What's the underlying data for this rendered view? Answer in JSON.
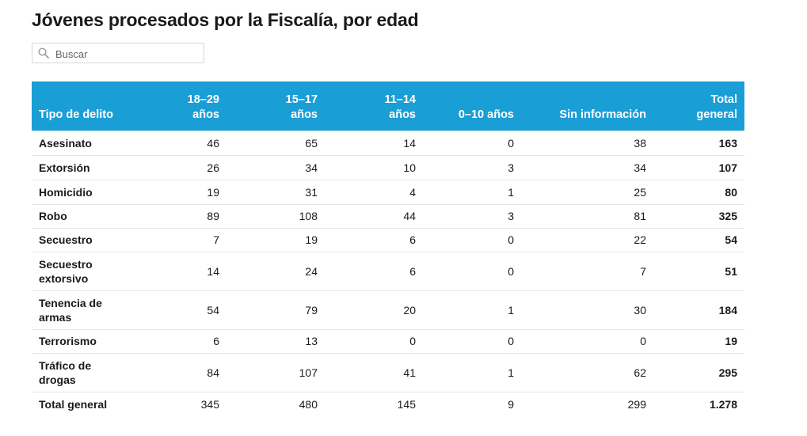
{
  "title": "Jóvenes procesados por la Fiscalía, por edad",
  "search": {
    "placeholder": "Buscar"
  },
  "table": {
    "headers": [
      {
        "line1": "",
        "line2": "Tipo de delito"
      },
      {
        "line1": "18–29",
        "line2": "años"
      },
      {
        "line1": "15–17",
        "line2": "años"
      },
      {
        "line1": "11–14",
        "line2": "años"
      },
      {
        "line1": "",
        "line2": "0–10 años"
      },
      {
        "line1": "",
        "line2": "Sin información"
      },
      {
        "line1": "Total",
        "line2": "general"
      }
    ],
    "rows": [
      {
        "label1": "Asesinato",
        "label2": "",
        "values": [
          "46",
          "65",
          "14",
          "0",
          "38",
          "163"
        ]
      },
      {
        "label1": "Extorsión",
        "label2": "",
        "values": [
          "26",
          "34",
          "10",
          "3",
          "34",
          "107"
        ]
      },
      {
        "label1": "Homicidio",
        "label2": "",
        "values": [
          "19",
          "31",
          "4",
          "1",
          "25",
          "80"
        ]
      },
      {
        "label1": "Robo",
        "label2": "",
        "values": [
          "89",
          "108",
          "44",
          "3",
          "81",
          "325"
        ]
      },
      {
        "label1": "Secuestro",
        "label2": "",
        "values": [
          "7",
          "19",
          "6",
          "0",
          "22",
          "54"
        ]
      },
      {
        "label1": "Secuestro",
        "label2": "extorsivo",
        "values": [
          "14",
          "24",
          "6",
          "0",
          "7",
          "51"
        ]
      },
      {
        "label1": "Tenencia de",
        "label2": "armas",
        "values": [
          "54",
          "79",
          "20",
          "1",
          "30",
          "184"
        ]
      },
      {
        "label1": "Terrorismo",
        "label2": "",
        "values": [
          "6",
          "13",
          "0",
          "0",
          "0",
          "19"
        ]
      },
      {
        "label1": "Tráfico de",
        "label2": "drogas",
        "values": [
          "84",
          "107",
          "41",
          "1",
          "62",
          "295"
        ]
      }
    ],
    "total_row": {
      "label": "Total general",
      "values": [
        "345",
        "480",
        "145",
        "9",
        "299",
        "1.278"
      ]
    }
  },
  "colors": {
    "header_bg": "#1a9ed6",
    "header_text": "#ffffff"
  }
}
